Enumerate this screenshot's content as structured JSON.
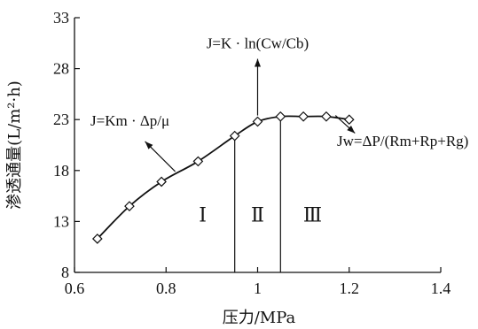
{
  "chart_data": {
    "type": "line",
    "title": "",
    "xlabel": "压力/MPa",
    "ylabel": "渗透通量(L/m²·h)",
    "xlim": [
      0.6,
      1.4
    ],
    "ylim": [
      8,
      33
    ],
    "xticks": [
      "0.6",
      "0.8",
      "1",
      "1.2",
      "1.4"
    ],
    "yticks": [
      "8",
      "13",
      "18",
      "23",
      "28",
      "33"
    ],
    "series": [
      {
        "x": [
          0.65,
          0.72,
          0.79,
          0.87,
          0.95,
          1.0,
          1.05,
          1.1,
          1.15,
          1.2
        ],
        "y": [
          11.3,
          14.5,
          16.9,
          18.9,
          21.4,
          22.8,
          23.3,
          23.3,
          23.3,
          23.0
        ]
      }
    ],
    "region_dividers_x": [
      0.95,
      1.05
    ],
    "regions": [
      {
        "label": "Ⅰ",
        "x": 0.88
      },
      {
        "label": "Ⅱ",
        "x": 1.0
      },
      {
        "label": "Ⅲ",
        "x": 1.12
      }
    ],
    "annotations": [
      {
        "text": "J=Km · Δp/μ",
        "point": [
          0.82,
          17.9
        ],
        "label_pos": [
          0.71,
          22.4
        ]
      },
      {
        "text": "J=K · ln(Cw/Cb)",
        "point": [
          1.0,
          23.4
        ],
        "label_pos": [
          1.0,
          30.0
        ]
      },
      {
        "text": "Jw=ΔP/(Rm+Rp+Rg)",
        "point": [
          1.17,
          23.4
        ],
        "label_pos": [
          1.28,
          20.4
        ]
      }
    ],
    "marker": "diamond-open",
    "line_color": "#111111"
  }
}
